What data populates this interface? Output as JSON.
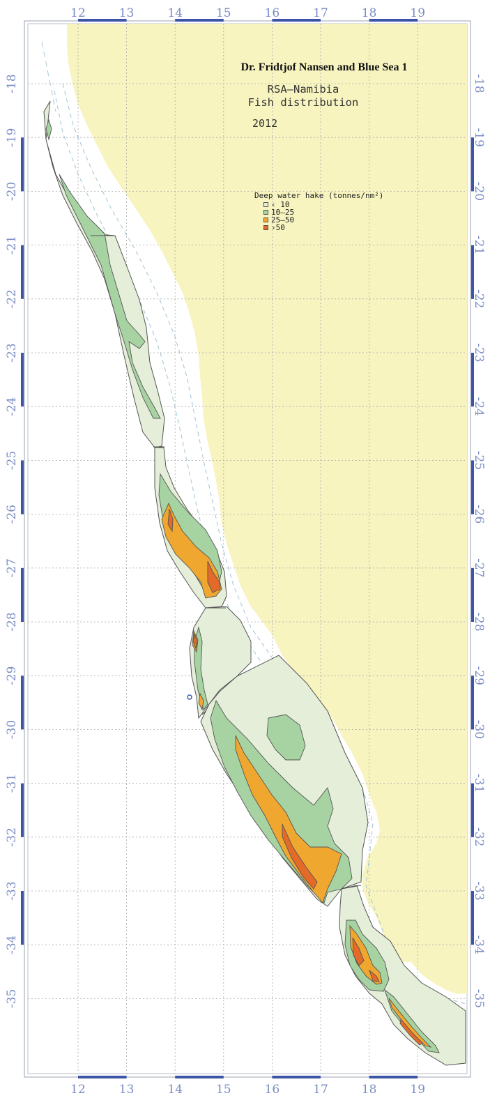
{
  "map": {
    "title": "Dr. Fridtjof Nansen and Blue Sea 1",
    "subtitle_line1": "RSA–Namibia",
    "subtitle_line2": "Fish distribution",
    "year": "2012",
    "longitude_ticks": [
      "12",
      "13",
      "14",
      "15",
      "16",
      "17",
      "18",
      "19"
    ],
    "latitude_ticks_left": [
      "-18",
      "-19",
      "-20",
      "-21",
      "-22",
      "-23",
      "-24",
      "-25",
      "-26",
      "-27",
      "-28",
      "-29",
      "-30",
      "-31",
      "-32",
      "-33",
      "-34",
      "-35"
    ],
    "latitude_ticks_right": [
      "-18",
      "-19",
      "-20",
      "-21",
      "-22",
      "-23",
      "-24",
      "-25",
      "-26",
      "-27",
      "-28",
      "-29",
      "-30",
      "-31",
      "-32",
      "-33",
      "-34",
      "-35"
    ],
    "colors": {
      "land": "#f7f4c0",
      "density_lt10": "#e4eed8",
      "density_10_25": "#a7d3a3",
      "density_25_50": "#f0a72f",
      "density_gt50": "#e46a2a",
      "axis_bar": "#3d55a8",
      "tick_text": "#7a8cc4",
      "grid": "#a9a9a9"
    }
  },
  "legend": {
    "title": "Deep water hake (tonnes/nm²)",
    "items": [
      {
        "label": "‹ 10",
        "color": "#e4eed8"
      },
      {
        "label": "10–25",
        "color": "#a7d3a3"
      },
      {
        "label": "25–50",
        "color": "#f0a72f"
      },
      {
        "label": "›50",
        "color": "#e46a2a"
      }
    ]
  }
}
